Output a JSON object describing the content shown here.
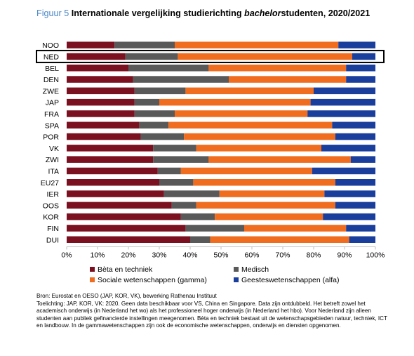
{
  "figure": {
    "label": "Figuur 5",
    "title_before": "Internationale vergelijking studierichting ",
    "title_italic": "bachelor",
    "title_after": "studenten, 2020/2021"
  },
  "chart_data": {
    "type": "bar",
    "orientation": "horizontal",
    "stacked": true,
    "categories": [
      "NOO",
      "NED",
      "BEL",
      "DEN",
      "ZWE",
      "JAP",
      "FRA",
      "SPA",
      "POR",
      "VK",
      "ZWI",
      "ITA",
      "EU27",
      "IER",
      "OOS",
      "KOR",
      "FIN",
      "DUI"
    ],
    "highlighted_category": "NED",
    "series": [
      {
        "name": "Bèta en techniek",
        "color": "#7b1020",
        "values": [
          15.5,
          19,
          20,
          21.5,
          22,
          22,
          22,
          23.5,
          24,
          28,
          28,
          29.5,
          30,
          31.5,
          34,
          37,
          38.5,
          40
        ]
      },
      {
        "name": "Medisch",
        "color": "#595959",
        "values": [
          19.5,
          17,
          26,
          31,
          16.5,
          8,
          13,
          9.5,
          14,
          14,
          18,
          7.5,
          11,
          18,
          8,
          11,
          19,
          6.5
        ]
      },
      {
        "name": "Sociale wetenschappen (gamma)",
        "color": "#f06d1f",
        "values": [
          53,
          56.5,
          44.5,
          38,
          41.5,
          49,
          43,
          53,
          49,
          40.5,
          46,
          42.5,
          46,
          34,
          45,
          35,
          33,
          45
        ]
      },
      {
        "name": "Geesteswetenschappen (alfa)",
        "color": "#1a3e9c",
        "values": [
          12,
          7.5,
          9.5,
          9.5,
          20,
          21,
          22,
          14,
          13,
          17.5,
          8,
          20.5,
          13,
          16.5,
          13,
          17,
          9.5,
          8.5
        ]
      }
    ],
    "x_ticks": [
      "0%",
      "10%",
      "20%",
      "30%",
      "40%",
      "50%",
      "60%",
      "70%",
      "80%",
      "90%",
      "100%"
    ],
    "xlim": [
      0,
      100
    ],
    "grid": false,
    "legend_position": "bottom"
  },
  "source": {
    "line1": "Bron: Eurostat en OESO (JAP, KOR, VK), bewerking Rathenau Instituut",
    "line2": "Toelichting: JAP, KOR, VK: 2020. Geen data beschikbaar voor VS, China en Singapore. Data zijn ontdubbeld. Het betreft zowel het academisch onderwijs (in Nederland het wo) als het professioneel hoger onderwijs (in Nederland het hbo). Voor Nederland zijn alleen studenten aan publiek gefinancierde instellingen meegenomen. Bèta en techniek bestaat uit de wetenschapsgebieden natuur, techniek, ICT en landbouw. In de gammawetenschappen zijn ook de economische wetenschappen, onderwijs en diensten opgenomen."
  }
}
